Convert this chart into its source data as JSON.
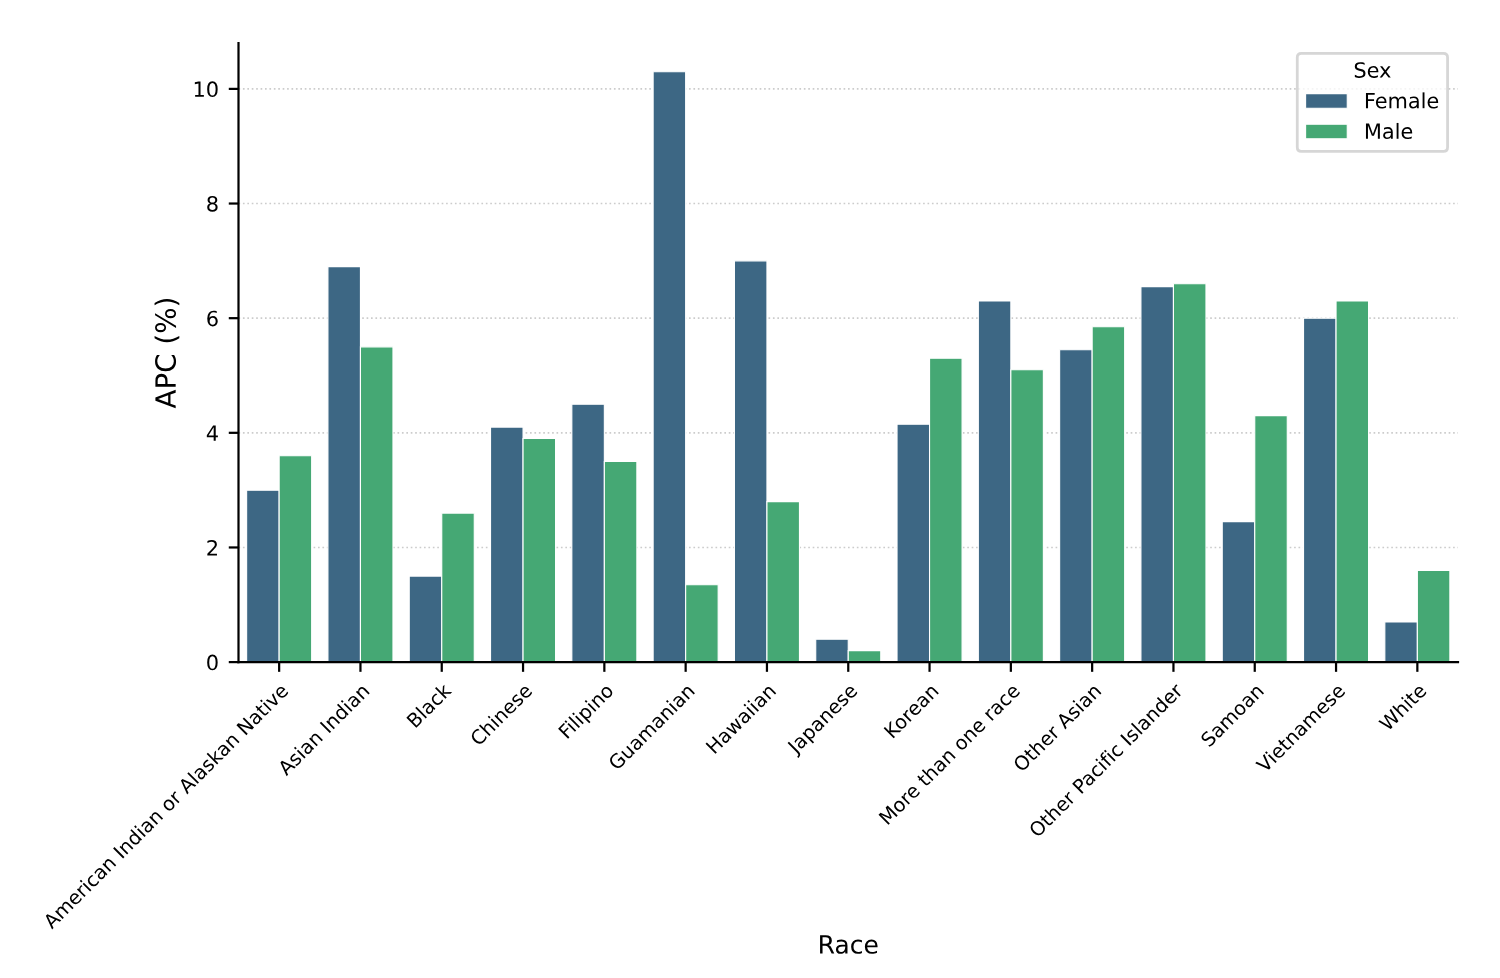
{
  "chart_data": {
    "type": "bar",
    "xlabel": "Race",
    "ylabel": "APC (%)",
    "legend_title": "Sex",
    "categories": [
      "American Indian or Alaskan Native",
      "Asian Indian",
      "Black",
      "Chinese",
      "Filipino",
      "Guamanian",
      "Hawaiian",
      "Japanese",
      "Korean",
      "More than one race",
      "Other Asian",
      "Other Pacific Islander",
      "Samoan",
      "Vietnamese",
      "White"
    ],
    "series": [
      {
        "name": "Female",
        "color": "#3d6784",
        "values": [
          3.0,
          6.9,
          1.5,
          4.1,
          4.5,
          10.3,
          7.0,
          0.4,
          4.15,
          6.3,
          5.45,
          6.55,
          2.45,
          6.0,
          0.7
        ]
      },
      {
        "name": "Male",
        "color": "#45a874",
        "values": [
          3.6,
          5.5,
          2.6,
          3.9,
          3.5,
          1.35,
          2.8,
          0.2,
          5.3,
          5.1,
          5.85,
          6.6,
          4.3,
          6.3,
          1.6
        ]
      }
    ],
    "ylim": [
      0,
      10.8
    ],
    "yticks": [
      0,
      2,
      4,
      6,
      8,
      10
    ],
    "grid": "y",
    "legend": "top right"
  }
}
